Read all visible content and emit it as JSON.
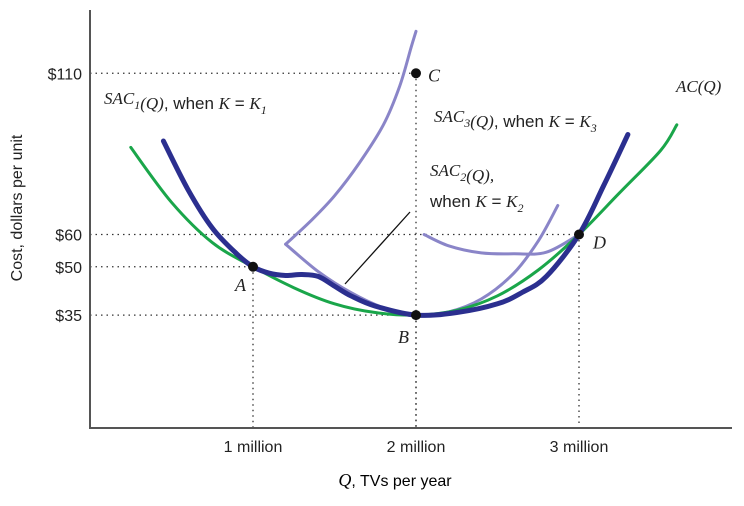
{
  "chart_data": {
    "type": "line",
    "title": "",
    "xlabel": {
      "var": "Q",
      "text": ", TVs per year"
    },
    "ylabel": "Cost, dollars per unit",
    "x_unit": "million TVs per year",
    "xlim": [
      0,
      3.6
    ],
    "ylim": [
      0,
      120
    ],
    "x_ticks": [
      {
        "value": 1,
        "label": "1 million"
      },
      {
        "value": 2,
        "label": "2 million"
      },
      {
        "value": 3,
        "label": "3 million"
      }
    ],
    "y_ticks": [
      {
        "value": 35,
        "label": "$35"
      },
      {
        "value": 50,
        "label": "$50"
      },
      {
        "value": 60,
        "label": "$60"
      },
      {
        "value": 110,
        "label": "$110"
      }
    ],
    "grid": false,
    "series": [
      {
        "key": "ac",
        "color": "#1aa64a",
        "width": 3,
        "label": {
          "fn": "AC",
          "sub": "",
          "arg": "(Q)",
          "cond": ""
        },
        "points": [
          [
            0.25,
            87
          ],
          [
            0.5,
            70
          ],
          [
            0.75,
            57.5
          ],
          [
            1,
            50
          ],
          [
            1.25,
            43.5
          ],
          [
            1.5,
            38.5
          ],
          [
            1.75,
            35.8
          ],
          [
            2,
            35
          ],
          [
            2.25,
            36.5
          ],
          [
            2.5,
            41
          ],
          [
            2.75,
            49
          ],
          [
            3,
            60
          ],
          [
            3.25,
            73
          ],
          [
            3.5,
            86
          ],
          [
            3.6,
            94
          ]
        ]
      },
      {
        "key": "sac1",
        "color": "#2b2f8f",
        "width": 5,
        "label": {
          "fn": "SAC",
          "sub": "1",
          "arg": "(Q)",
          "cond": ", when K = K",
          "cond_sub": "1"
        },
        "points": [
          [
            0.45,
            89
          ],
          [
            0.6,
            74
          ],
          [
            0.75,
            62
          ],
          [
            0.9,
            54
          ],
          [
            1,
            50
          ],
          [
            1.1,
            48
          ],
          [
            1.2,
            47.3
          ],
          [
            1.3,
            47.6
          ],
          [
            1.4,
            47
          ],
          [
            1.5,
            44
          ],
          [
            1.6,
            41
          ],
          [
            1.75,
            37.8
          ],
          [
            2,
            35
          ],
          [
            2.25,
            35.8
          ],
          [
            2.5,
            38.5
          ],
          [
            2.65,
            42
          ],
          [
            2.8,
            47
          ],
          [
            3,
            60
          ],
          [
            3.15,
            75
          ],
          [
            3.3,
            91
          ]
        ]
      },
      {
        "key": "sac2",
        "color": "#8a85c8",
        "width": 3,
        "label": {
          "fn": "SAC",
          "sub": "2",
          "arg": "(Q),",
          "cond": "when K = K",
          "cond_sub": "2"
        },
        "points": [
          [
            1.2,
            57
          ],
          [
            1.4,
            48.5
          ],
          [
            1.6,
            42
          ],
          [
            1.8,
            37.3
          ],
          [
            2,
            35
          ],
          [
            2.2,
            36
          ],
          [
            2.4,
            40
          ],
          [
            2.6,
            48
          ],
          [
            2.75,
            58
          ],
          [
            2.87,
            69
          ]
        ]
      },
      {
        "key": "sac3",
        "color": "#8a85c8",
        "width": 3,
        "label": {
          "fn": "SAC",
          "sub": "3",
          "arg": "(Q)",
          "cond": ", when K = K",
          "cond_sub": "3"
        },
        "points": [
          [
            2.05,
            60
          ],
          [
            2.2,
            56.5
          ],
          [
            2.4,
            54.3
          ],
          [
            2.6,
            54
          ],
          [
            2.8,
            54.5
          ],
          [
            3,
            60
          ]
        ]
      },
      {
        "key": "sac2_hi",
        "color": "#8a85c8",
        "width": 3,
        "points": [
          [
            1.2,
            57
          ],
          [
            1.35,
            64
          ],
          [
            1.5,
            72
          ],
          [
            1.65,
            82
          ],
          [
            1.8,
            94
          ],
          [
            1.9,
            106
          ],
          [
            1.97,
            118
          ],
          [
            2,
            123
          ]
        ]
      }
    ],
    "points": [
      {
        "name": "A",
        "x": 1,
        "y": 50
      },
      {
        "name": "B",
        "x": 2,
        "y": 35
      },
      {
        "name": "C",
        "x": 2,
        "y": 110
      },
      {
        "name": "D",
        "x": 3,
        "y": 60
      }
    ]
  }
}
